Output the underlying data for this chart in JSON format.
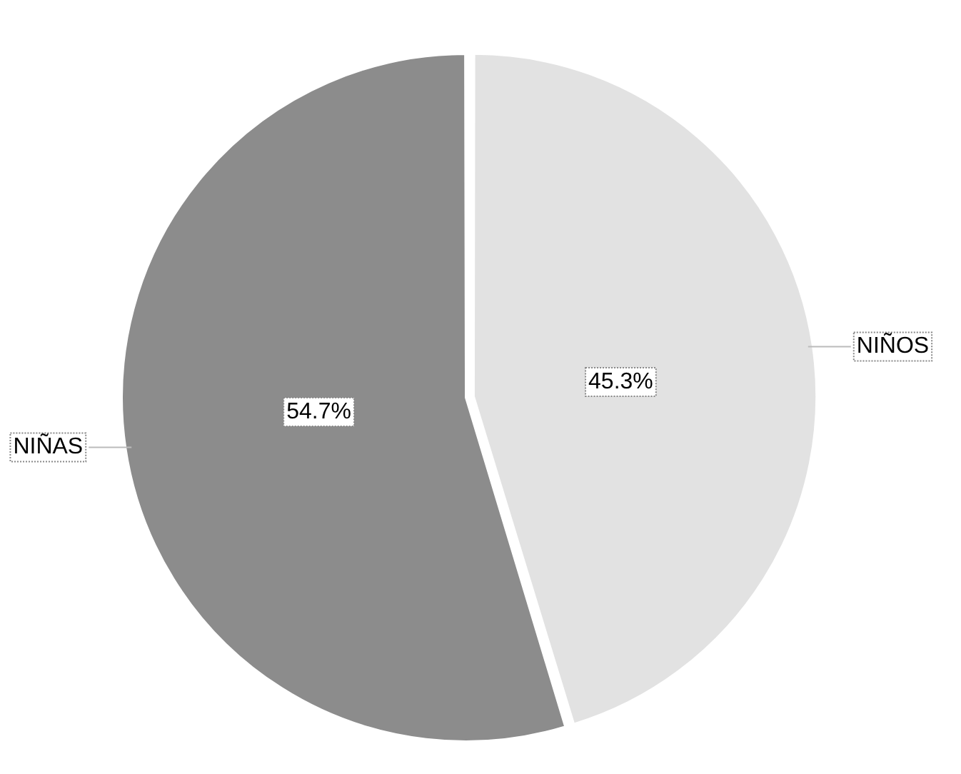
{
  "chart_data": {
    "type": "pie",
    "categories": [
      "NIÑOS",
      "NIÑAS"
    ],
    "values": [
      45.3,
      54.7
    ],
    "value_labels": [
      "45.3%",
      "54.7%"
    ],
    "colors": [
      "#e2e2e2",
      "#8c8c8c"
    ]
  }
}
